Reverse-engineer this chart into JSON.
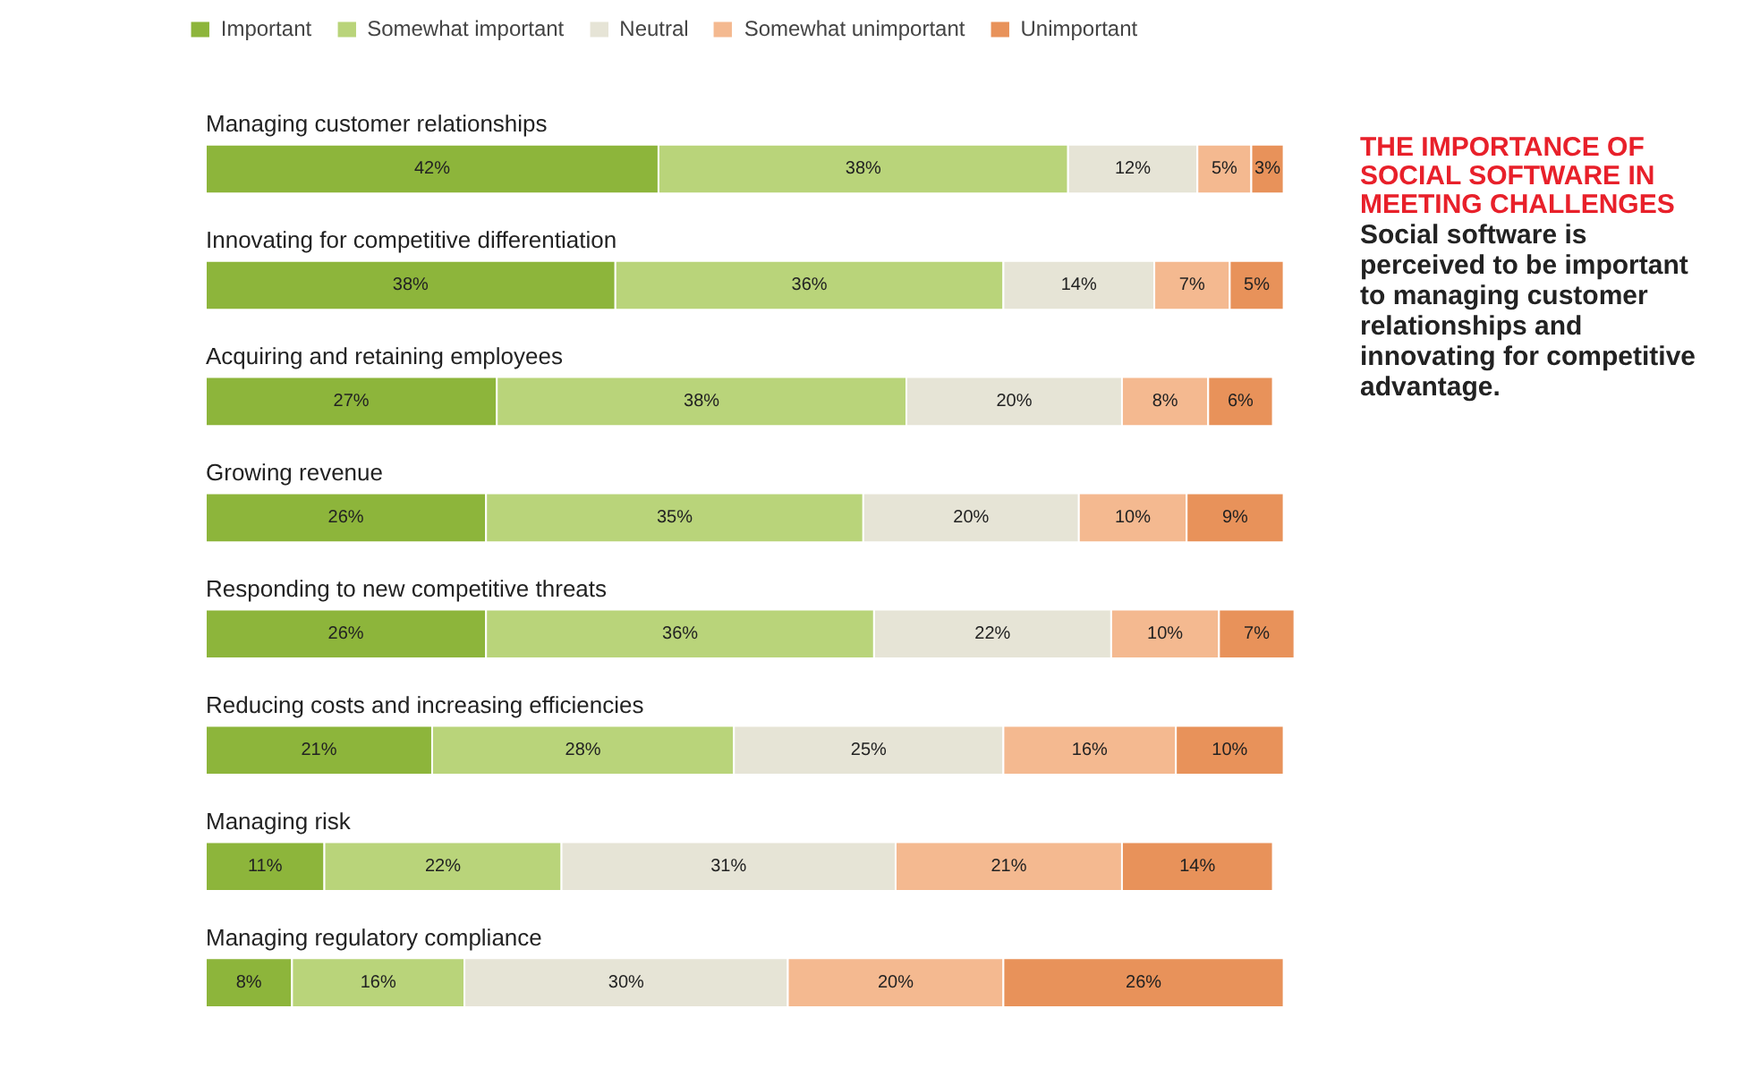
{
  "chart_data": {
    "type": "bar",
    "orientation": "horizontal",
    "stacked": true,
    "legend": "top",
    "grid": false,
    "title": "THE IMPORTANCE OF SOCIAL SOFTWARE IN MEETING CHALLENGES",
    "subtitle": "Social software is perceived to be important to managing customer relationships and innovating for competitive advantage.",
    "categories": [
      "Managing customer relationships",
      "Innovating for competitive differentiation",
      "Acquiring and retaining employees",
      "Growing revenue",
      "Responding to new competitive threats",
      "Reducing costs and increasing efficiencies",
      "Managing risk",
      "Managing regulatory compliance"
    ],
    "series": [
      {
        "name": "Important",
        "color": "#8db53b",
        "values": [
          42,
          38,
          27,
          26,
          26,
          21,
          11,
          8
        ],
        "value_labels": [
          "42%",
          "38%",
          "27%",
          "26%",
          "26%",
          "21%",
          "11%",
          "8%"
        ]
      },
      {
        "name": "Somewhat important",
        "color": "#b9d47a",
        "values": [
          38,
          36,
          38,
          35,
          36,
          28,
          22,
          16
        ],
        "value_labels": [
          "38%",
          "36%",
          "38%",
          "35%",
          "36%",
          "28%",
          "22%",
          "16%"
        ]
      },
      {
        "name": "Neutral",
        "color": "#e6e4d6",
        "values": [
          12,
          14,
          20,
          20,
          22,
          25,
          31,
          30
        ],
        "value_labels": [
          "12%",
          "14%",
          "20%",
          "20%",
          "22%",
          "25%",
          "31%",
          "30%"
        ]
      },
      {
        "name": "Somewhat unimportant",
        "color": "#f4b990",
        "values": [
          5,
          7,
          8,
          10,
          10,
          16,
          21,
          20
        ],
        "value_labels": [
          "5%",
          "7%",
          "8%",
          "10%",
          "10%",
          "16%",
          "21%",
          "20%"
        ]
      },
      {
        "name": "Unimportant",
        "color": "#e8925a",
        "values": [
          3,
          5,
          6,
          9,
          7,
          10,
          14,
          26
        ],
        "value_labels": [
          "3%",
          "5%",
          "6%",
          "9%",
          "7%",
          "10%",
          "14%",
          "26%"
        ]
      }
    ]
  }
}
